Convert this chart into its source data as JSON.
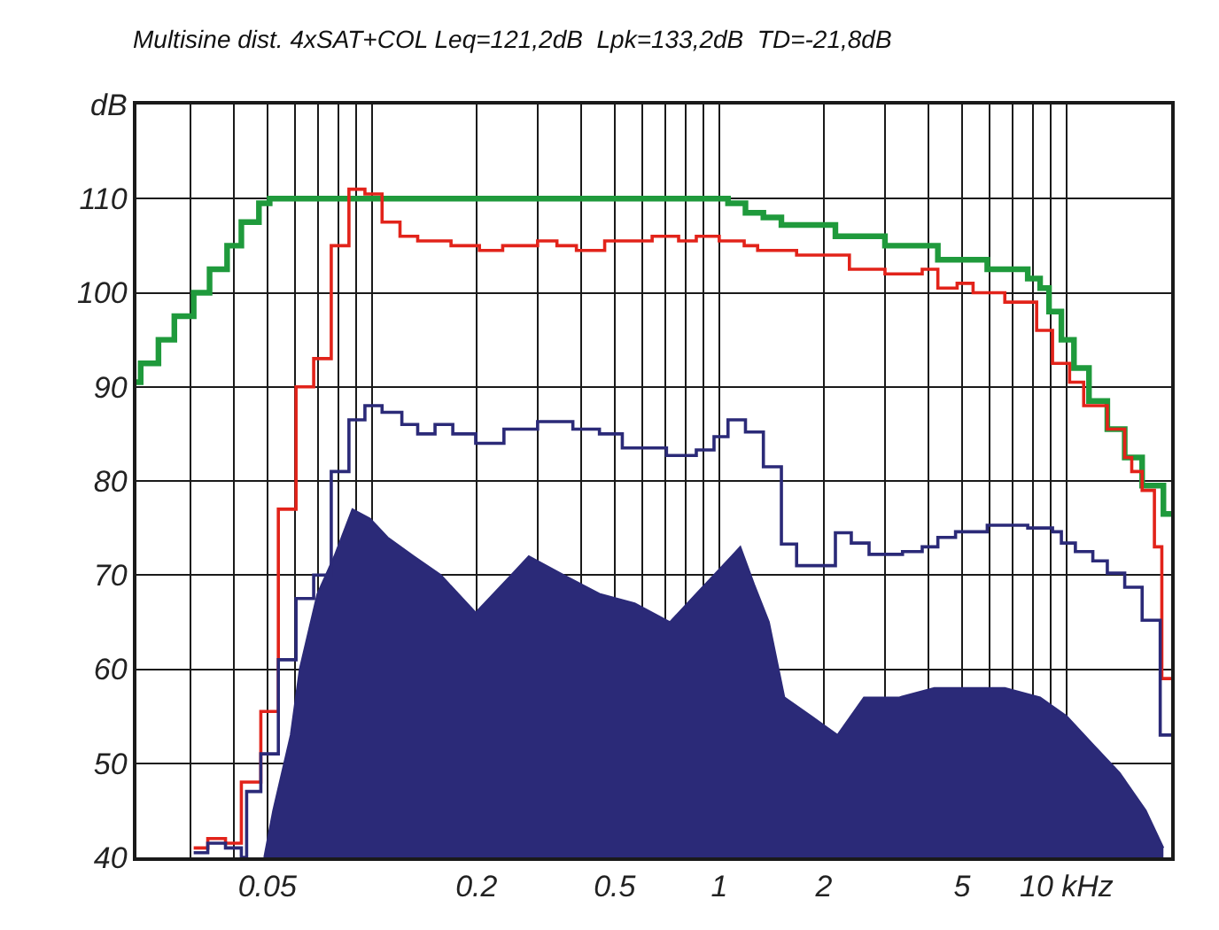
{
  "chart_data": {
    "type": "step",
    "title": "Multisine dist. 4xSAT+COL Leq=121,2dB  Lpk=133,2dB  TD=-21,8dB",
    "log": "x",
    "grid": true,
    "marker": "none",
    "line_style": "solid",
    "xlim": [
      0.021,
      20
    ],
    "ylim": [
      40,
      120
    ],
    "xticks": [
      {
        "value": 0.03,
        "label": null
      },
      {
        "value": 0.04,
        "label": null
      },
      0.05,
      {
        "value": 0.06,
        "label": null
      },
      {
        "value": 0.07,
        "label": null
      },
      {
        "value": 0.08,
        "label": null
      },
      {
        "value": 0.09,
        "label": null
      },
      {
        "value": 0.1,
        "label": null
      },
      0.2,
      {
        "value": 0.3,
        "label": null
      },
      {
        "value": 0.4,
        "label": null
      },
      0.5,
      {
        "value": 0.6,
        "label": null
      },
      {
        "value": 0.7,
        "label": null
      },
      {
        "value": 0.8,
        "label": null
      },
      {
        "value": 0.9,
        "label": null
      },
      1,
      2,
      {
        "value": 3,
        "label": null
      },
      {
        "value": 4,
        "label": null
      },
      5,
      {
        "value": 6,
        "label": null
      },
      {
        "value": 7,
        "label": null
      },
      {
        "value": 8,
        "label": null
      },
      {
        "value": 9,
        "label": null
      },
      {
        "value": 10,
        "label": "10 kHz"
      }
    ],
    "yticks": [
      40,
      50,
      60,
      70,
      80,
      90,
      100,
      110,
      {
        "value": 120,
        "label": "dB"
      }
    ],
    "series": [
      {
        "type": "area",
        "color": "#2b2a78",
        "x": [
          0.049,
          0.052,
          0.0584,
          0.062,
          0.0697,
          0.078,
          0.0879,
          0.0988,
          0.111,
          0.132,
          0.158,
          0.199,
          0.252,
          0.283,
          0.357,
          0.452,
          0.571,
          0.721,
          0.859,
          0.966,
          1.086,
          1.15,
          1.26,
          1.39,
          1.54,
          1.84,
          2.19,
          2.61,
          3.3,
          4.16,
          5.26,
          6.64,
          8.39,
          10.0,
          11.9,
          14.2,
          16.9,
          19.0
        ],
        "values": [
          40,
          45,
          53,
          60,
          68,
          72,
          77,
          76,
          74,
          72,
          70,
          66,
          70,
          72,
          70,
          68,
          67,
          65,
          68,
          70,
          72,
          73,
          69,
          65,
          57,
          55,
          53,
          57,
          57,
          58,
          58,
          58,
          57,
          55,
          52,
          49,
          45,
          41
        ]
      },
      {
        "color": "#1f9a3c",
        "x": [
          0.021,
          0.0216,
          0.0243,
          0.027,
          0.0307,
          0.0341,
          0.0383,
          0.0421,
          0.0473,
          0.0508,
          1.06,
          1.19,
          1.34,
          1.51,
          2.16,
          3.0,
          4.26,
          5.91,
          7.73,
          8.39,
          8.9,
          9.66,
          10.5,
          11.6,
          13.1,
          14.7,
          16.5,
          19.0,
          20
        ],
        "values": [
          90.5,
          92.5,
          95,
          97.5,
          100,
          102.5,
          105,
          107.5,
          109.5,
          110,
          109.5,
          108.5,
          108,
          107.2,
          106,
          105,
          103.5,
          102.5,
          101.5,
          100.5,
          98,
          95,
          92,
          88.5,
          85.5,
          82.5,
          79.5,
          76.5,
          76.5
        ]
      },
      {
        "color": "#e2231a",
        "x": [
          0.0307,
          0.0337,
          0.0379,
          0.0421,
          0.0479,
          0.0538,
          0.0605,
          0.068,
          0.0764,
          0.0859,
          0.0955,
          0.107,
          0.1205,
          0.1355,
          0.169,
          0.204,
          0.238,
          0.3,
          0.341,
          0.388,
          0.468,
          0.641,
          0.764,
          0.859,
          1.0,
          1.18,
          1.29,
          1.67,
          2.37,
          3.0,
          3.84,
          4.26,
          4.84,
          5.38,
          6.64,
          8.2,
          9.11,
          10.2,
          11.2,
          13.1,
          14.7,
          15.4,
          16.5,
          17.9,
          18.8,
          20
        ],
        "values": [
          41,
          42,
          41.5,
          48,
          55.5,
          77,
          90,
          93,
          105,
          111,
          110.5,
          107.5,
          106,
          105.5,
          105,
          104.5,
          105,
          105.5,
          105,
          104.5,
          105.5,
          106,
          105.5,
          106,
          105.5,
          105,
          104.5,
          104,
          102.5,
          102,
          102.5,
          100.5,
          101,
          100,
          99,
          96,
          92.5,
          90.5,
          88,
          85.5,
          82.5,
          81,
          79,
          73,
          59,
          59
        ]
      },
      {
        "color": "#2b2a78",
        "x": [
          0.0307,
          0.0337,
          0.0379,
          0.0421,
          0.0436,
          0.0479,
          0.0538,
          0.0605,
          0.068,
          0.0764,
          0.0859,
          0.0955,
          0.107,
          0.122,
          0.1355,
          0.152,
          0.171,
          0.199,
          0.24,
          0.3,
          0.379,
          0.452,
          0.526,
          0.705,
          0.859,
          0.966,
          1.06,
          1.19,
          1.34,
          1.51,
          1.67,
          2.16,
          2.4,
          2.7,
          3.37,
          3.84,
          4.26,
          4.79,
          5.91,
          7.73,
          9.11,
          9.66,
          10.6,
          11.9,
          13.1,
          14.7,
          16.5,
          18.6,
          20
        ],
        "values": [
          40.5,
          41.5,
          41,
          40,
          47,
          51,
          61,
          67.5,
          70,
          81,
          86.5,
          88,
          87.3,
          86,
          85,
          86,
          85,
          84,
          85.5,
          86.3,
          85.5,
          85,
          83.5,
          82.7,
          83.3,
          84.7,
          86.5,
          85.2,
          81.5,
          73.3,
          71,
          74.5,
          73.4,
          72.2,
          72.5,
          73,
          74,
          74.6,
          75.3,
          75,
          74.6,
          73.4,
          72.5,
          71.5,
          70.2,
          68.7,
          65.2,
          53,
          53
        ]
      }
    ]
  }
}
